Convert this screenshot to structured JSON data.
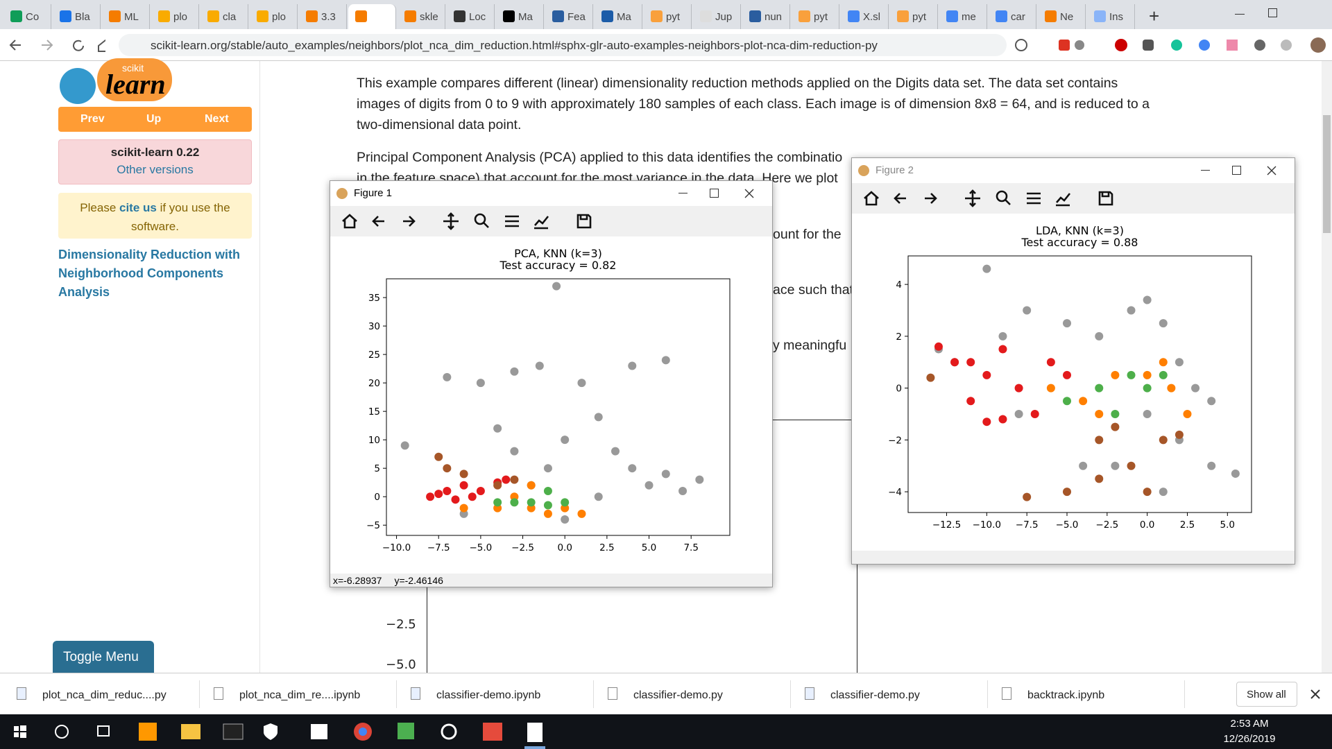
{
  "browser": {
    "tabs": [
      "Co",
      "Bla",
      "ML",
      "plo",
      "cla",
      "plo",
      "3.3",
      "skle",
      "Loc",
      "Ma",
      "Fea",
      "Ma",
      "pyt",
      "Jup",
      "nun",
      "pyt",
      "X.sl",
      "pyt",
      "me",
      "car",
      "Ne",
      "Ins"
    ],
    "url": "scikit-learn.org/stable/auto_examples/neighbors/plot_nca_dim_reduction.html#sphx-glr-auto-examples-neighbors-plot-nca-dim-reduction-py"
  },
  "sidebar": {
    "logo_small": "scikit",
    "logo": "learn",
    "nav": [
      "Prev",
      "Up",
      "Next"
    ],
    "version": "scikit-learn 0.22",
    "other_versions": "Other versions",
    "cite": [
      "Please ",
      "cite us",
      " if you use the software."
    ],
    "page_title": "Dimensionality Reduction with Neighborhood Components Analysis",
    "toggle": "Toggle Menu"
  },
  "article": {
    "paragraph1": "This example compares different (linear) dimensionality reduction methods applied on the Digits data set. The data set contains images of digits from 0 to 9 with approximately 180 samples of each class. Each image is of dimension 8x8 = 64, and is reduced to a two-dimensional data point.",
    "paragraph2_line1": "Principal Component Analysis (PCA) applied to this data identifies the combinatio",
    "paragraph2_line2": "in the feature space) that account for the most variance in the data. Here we plot",
    "fragments": [
      "ount for the",
      "ace such that",
      "y meaningfu"
    ],
    "background_yticks": [
      "−2.5",
      "−5.0"
    ]
  },
  "windows": [
    {
      "title": "Figure 1",
      "status": [
        "x=-6.28937",
        "y=-2.46146"
      ]
    },
    {
      "title": "Figure 2"
    }
  ],
  "downloads": {
    "items": [
      "plot_nca_dim_reduc....py",
      "plot_nca_dim_re....ipynb",
      "classifier-demo.ipynb",
      "classifier-demo.py",
      "classifier-demo.py",
      "backtrack.ipynb"
    ],
    "show_all": "Show all"
  },
  "taskbar": {
    "time": "2:53 AM",
    "date": "12/26/2019"
  },
  "chart_data": [
    {
      "type": "scatter",
      "title": "PCA, KNN (k=3)",
      "subtitle": "Test accuracy = 0.82",
      "xlim": [
        -10.6,
        9.8
      ],
      "ylim": [
        -6.8,
        38.3
      ],
      "xticks": [
        {
          "value": -10,
          "label": "−10.0"
        },
        {
          "value": -7.5,
          "label": "−7.5"
        },
        {
          "value": -5,
          "label": "−5.0"
        },
        {
          "value": -2.5,
          "label": "−2.5"
        },
        {
          "value": 0,
          "label": "0.0"
        },
        {
          "value": 2.5,
          "label": "2.5"
        },
        {
          "value": 5,
          "label": "5.0"
        },
        {
          "value": 7.5,
          "label": "7.5"
        }
      ],
      "yticks": [
        {
          "value": -5,
          "label": "−5"
        },
        0,
        5,
        10,
        15,
        20,
        25,
        30,
        35
      ],
      "series": [
        {
          "color": "#999999",
          "x": [
            -9.5,
            -7,
            -5,
            -3,
            -1.5,
            1,
            4,
            6,
            -0.5,
            -3,
            0,
            3,
            6,
            8,
            -2,
            2,
            5,
            -6,
            0,
            -4,
            2,
            -1,
            4,
            7
          ],
          "y": [
            9,
            21,
            20,
            22,
            23,
            20,
            23,
            24,
            37,
            8,
            10,
            8,
            4,
            3,
            2,
            0,
            2,
            -3,
            -4,
            12,
            14,
            5,
            5,
            1
          ]
        },
        {
          "color": "#e31a1c",
          "x": [
            -8,
            -7,
            -6,
            -5,
            -4,
            -6.5,
            -5.5,
            -3.5,
            -7.5
          ],
          "y": [
            0,
            1,
            2,
            1,
            2.5,
            -0.5,
            0,
            3,
            0.5
          ]
        },
        {
          "color": "#ff7f00",
          "x": [
            -6,
            -4,
            -2,
            -1,
            0,
            -2,
            -3,
            1
          ],
          "y": [
            -2,
            -2,
            -2,
            -3,
            -2,
            2,
            0,
            -3
          ]
        },
        {
          "color": "#4daf4a",
          "x": [
            -3,
            -2,
            -1,
            0,
            -4,
            -1
          ],
          "y": [
            -1,
            -1,
            -1.5,
            -1,
            -1,
            1
          ]
        },
        {
          "color": "#a65628",
          "x": [
            -7.5,
            -7,
            -6,
            -4,
            -3
          ],
          "y": [
            7,
            5,
            4,
            2,
            3
          ]
        }
      ]
    },
    {
      "type": "scatter",
      "title": "LDA, KNN (k=3)",
      "subtitle": "Test accuracy = 0.88",
      "xlim": [
        -14.9,
        6.5
      ],
      "ylim": [
        -4.8,
        5.1
      ],
      "xticks": [
        {
          "value": -12.5,
          "label": "−12.5"
        },
        {
          "value": -10,
          "label": "−10.0"
        },
        {
          "value": -7.5,
          "label": "−7.5"
        },
        {
          "value": -5,
          "label": "−5.0"
        },
        {
          "value": -2.5,
          "label": "−2.5"
        },
        {
          "value": 0,
          "label": "0.0"
        },
        {
          "value": 2.5,
          "label": "2.5"
        },
        {
          "value": 5,
          "label": "5.0"
        }
      ],
      "yticks": [
        {
          "value": -4,
          "label": "−4"
        },
        {
          "value": -2,
          "label": "−2"
        },
        0,
        2,
        4
      ],
      "series": [
        {
          "color": "#999999",
          "x": [
            -10,
            -9,
            -7.5,
            -5,
            -3,
            -1,
            0,
            1,
            2,
            3,
            4,
            5.5,
            2,
            4,
            -2,
            -4,
            0,
            1,
            -12,
            -8,
            -13
          ],
          "y": [
            4.6,
            2,
            3,
            2.5,
            2,
            3,
            3.4,
            2.5,
            1,
            0,
            -0.5,
            -3.3,
            -2,
            -3,
            -3,
            -3,
            -1,
            -4,
            1,
            -1,
            1.5
          ]
        },
        {
          "color": "#e31a1c",
          "x": [
            -13,
            -12,
            -11,
            -10,
            -9,
            -8,
            -7,
            -9,
            -11,
            -6,
            -5,
            -10
          ],
          "y": [
            1.6,
            1,
            1,
            0.5,
            1.5,
            0,
            -1,
            -1.2,
            -0.5,
            1,
            0.5,
            -1.3
          ]
        },
        {
          "color": "#ff7f00",
          "x": [
            -6,
            -4,
            -2,
            0,
            1.5,
            2.5,
            -3,
            1
          ],
          "y": [
            0,
            -0.5,
            0.5,
            0.5,
            0,
            -1,
            -1,
            1
          ]
        },
        {
          "color": "#4daf4a",
          "x": [
            -5,
            -3,
            -1,
            0,
            -2,
            1
          ],
          "y": [
            -0.5,
            0,
            0.5,
            0,
            -1,
            0.5
          ]
        },
        {
          "color": "#a65628",
          "x": [
            -13.5,
            -7.5,
            -5,
            -3,
            -1,
            0,
            -2,
            1,
            2,
            -3
          ],
          "y": [
            0.4,
            -4.2,
            -4,
            -2,
            -3,
            -4,
            -1.5,
            -2,
            -1.8,
            -3.5
          ]
        }
      ]
    }
  ]
}
